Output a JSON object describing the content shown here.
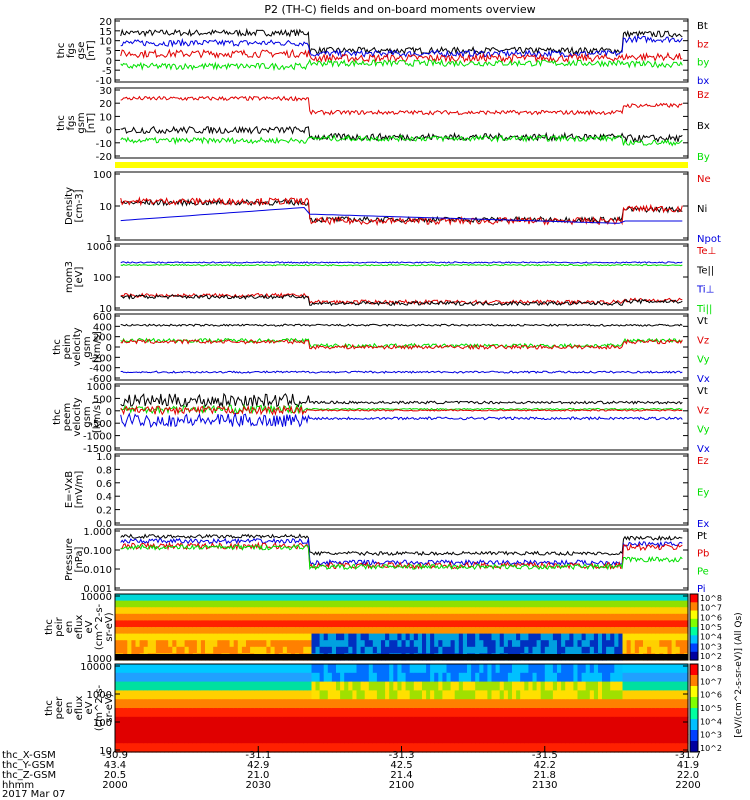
{
  "title": "P2 (TH-C) fields and on-board moments overview",
  "colors": {
    "black": "#000000",
    "red": "#e00000",
    "green": "#00e000",
    "blue": "#0000e0",
    "yellow": "#ffff00"
  },
  "panels": [
    {
      "id": "fgs-gse",
      "ylabel": [
        "thc",
        "fgs",
        "gse",
        "[nT]"
      ],
      "yticks": [
        "20",
        "15",
        "10",
        "5",
        "0",
        "-5",
        "-10"
      ],
      "legend": [
        {
          "label": "Bt",
          "color": "black"
        },
        {
          "label": "bz",
          "color": "red"
        },
        {
          "label": "by",
          "color": "green"
        },
        {
          "label": "bx",
          "color": "blue"
        }
      ]
    },
    {
      "id": "fgs-gsm",
      "ylabel": [
        "thc",
        "fgs",
        "gsm",
        "[nT]"
      ],
      "yticks": [
        "30",
        "20",
        "10",
        "0",
        "-10",
        "-20"
      ],
      "legend": [
        {
          "label": "Bz",
          "color": "red"
        },
        {
          "label": "Bx",
          "color": "black"
        },
        {
          "label": "By",
          "color": "green"
        }
      ]
    },
    {
      "id": "density",
      "ylabel": [
        "Density",
        "[cm-3]"
      ],
      "yticks": [
        "100",
        "10",
        "1"
      ],
      "legend": [
        {
          "label": "Ne",
          "color": "red"
        },
        {
          "label": "Ni",
          "color": "black"
        },
        {
          "label": "Npot",
          "color": "blue"
        }
      ]
    },
    {
      "id": "temperature",
      "ylabel": [
        "mom3",
        "[eV]"
      ],
      "yticks": [
        "1000",
        "100",
        "10"
      ],
      "legend": [
        {
          "label": "Te⊥",
          "color": "red"
        },
        {
          "label": "Te||",
          "color": "black"
        },
        {
          "label": "Ti⊥",
          "color": "blue"
        },
        {
          "label": "Ti||",
          "color": "green"
        }
      ]
    },
    {
      "id": "peim-velocity",
      "ylabel": [
        "thc",
        "peim",
        "velocity",
        "gsm",
        "[km/s]"
      ],
      "yticks": [
        "600",
        "400",
        "200",
        "0",
        "-200",
        "-400",
        "-600"
      ],
      "legend": [
        {
          "label": "Vt",
          "color": "black"
        },
        {
          "label": "Vz",
          "color": "red"
        },
        {
          "label": "Vy",
          "color": "green"
        },
        {
          "label": "Vx",
          "color": "blue"
        }
      ]
    },
    {
      "id": "peem-velocity",
      "ylabel": [
        "thc",
        "peem",
        "velocity",
        "gsm",
        "[km/s]"
      ],
      "yticks": [
        "1000",
        "500",
        "0",
        "-500",
        "-1000",
        "-1500"
      ],
      "legend": [
        {
          "label": "Vt",
          "color": "black"
        },
        {
          "label": "Vz",
          "color": "red"
        },
        {
          "label": "Vy",
          "color": "green"
        },
        {
          "label": "Vx",
          "color": "blue"
        }
      ]
    },
    {
      "id": "efield",
      "ylabel": [
        "E=-VxB",
        "[mV/m]"
      ],
      "yticks": [
        "1.0",
        "0.8",
        "0.6",
        "0.4",
        "0.2",
        "0.0"
      ],
      "legend": [
        {
          "label": "Ez",
          "color": "red"
        },
        {
          "label": "Ey",
          "color": "green"
        },
        {
          "label": "Ex",
          "color": "blue"
        }
      ]
    },
    {
      "id": "pressure",
      "ylabel": [
        "Pressure",
        "[nPa]"
      ],
      "yticks": [
        "1.000",
        "0.100",
        "0.010",
        "0.001"
      ],
      "legend": [
        {
          "label": "Pt",
          "color": "black"
        },
        {
          "label": "Pb",
          "color": "red"
        },
        {
          "label": "Pe",
          "color": "green"
        },
        {
          "label": "Pi",
          "color": "blue"
        }
      ]
    },
    {
      "id": "peir-eflux",
      "ylabel": [
        "thc",
        "peir",
        "en",
        "eflux",
        "eV",
        "(cm^2-s-",
        "sr-eV)"
      ],
      "yticks": [
        "10000",
        "1000"
      ],
      "legend": []
    },
    {
      "id": "peer-eflux",
      "ylabel": [
        "thc",
        "peer",
        "en",
        "eflux",
        "eV",
        "(cm^2-s-",
        "sr-eV)"
      ],
      "yticks": [
        "10000",
        "1000",
        "100",
        "10"
      ],
      "legend": []
    }
  ],
  "colorbar": {
    "label": "[eV/(cm^2-s-sr-eV)] (All Qs)",
    "ticks_upper": [
      "10^8",
      "10^7",
      "10^6",
      "10^5",
      "10^4",
      "10^3",
      "10^2"
    ],
    "ticks_lower": [
      "10^8",
      "10^7",
      "10^6",
      "10^5",
      "10^4",
      "10^3",
      "10^2"
    ]
  },
  "xaxis": {
    "ticks": [
      {
        "X": "-30.9",
        "Y": "43.4",
        "Z": "20.5",
        "hhmm": "2000"
      },
      {
        "X": "-31.1",
        "Y": "42.9",
        "Z": "21.0",
        "hhmm": "2030"
      },
      {
        "X": "-31.3",
        "Y": "42.5",
        "Z": "21.4",
        "hhmm": "2100"
      },
      {
        "X": "-31.5",
        "Y": "42.2",
        "Z": "21.8",
        "hhmm": "2130"
      },
      {
        "X": "-31.7",
        "Y": "41.9",
        "Z": "22.0",
        "hhmm": "2200"
      }
    ],
    "row_labels": [
      "thc_X-GSM",
      "thc_Y-GSM",
      "thc_Z-GSM",
      "hhmm"
    ],
    "date": "2017 Mar 07"
  }
}
